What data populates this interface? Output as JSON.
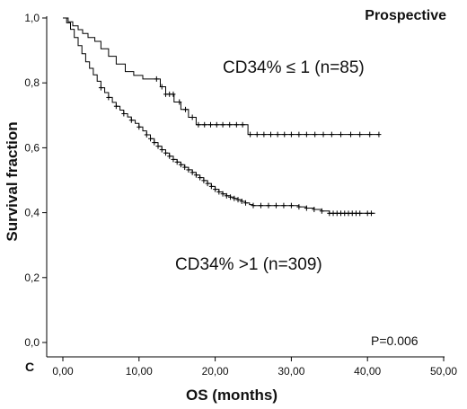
{
  "panel_label": "C",
  "chart_data": {
    "type": "line",
    "title": "Prospective",
    "xlabel": "OS (months)",
    "ylabel": "Survival fraction",
    "xlim": [
      0,
      50
    ],
    "ylim": [
      0,
      1
    ],
    "x_ticks": [
      "0,00",
      "10,00",
      "20,00",
      "30,00",
      "40,00",
      "50,00"
    ],
    "y_ticks": [
      "0,0",
      "0,2",
      "0,4",
      "0,6",
      "0,8",
      "1,0"
    ],
    "grid": false,
    "annotations": [
      "P=0.006"
    ],
    "group_labels": [
      "CD34% ≤ 1 (n=85)",
      "CD34% >1 (n=309)"
    ],
    "series": [
      {
        "name": "CD34% ≤ 1 (n=85)",
        "step": true,
        "x": [
          0,
          0.7,
          1.3,
          2,
          2.6,
          3.3,
          4.2,
          5,
          6,
          7,
          8.2,
          9.3,
          10.5,
          12.8,
          13.5,
          14.6,
          15.5,
          16.5,
          17.5,
          24.3,
          41.5
        ],
        "y": [
          1.0,
          0.988,
          0.976,
          0.964,
          0.952,
          0.94,
          0.928,
          0.905,
          0.882,
          0.858,
          0.835,
          0.823,
          0.812,
          0.788,
          0.765,
          0.741,
          0.718,
          0.694,
          0.671,
          0.641,
          0.641
        ],
        "censor_x": [
          12.3,
          13.0,
          13.5,
          14.0,
          14.5,
          15.3,
          16.1,
          17.0,
          17.8,
          18.6,
          19.4,
          20.2,
          21.0,
          21.9,
          22.8,
          23.6,
          24.6,
          25.5,
          26.4,
          27.3,
          28.2,
          29.1,
          30.0,
          31.0,
          32.0,
          33.1,
          34.2,
          35.3,
          36.5,
          37.8,
          39.0,
          40.3,
          41.5
        ]
      },
      {
        "name": "CD34% >1 (n=309)",
        "step": true,
        "x": [
          0,
          0.5,
          1,
          1.5,
          2,
          2.5,
          3,
          3.5,
          4,
          4.5,
          5,
          5.5,
          6,
          6.5,
          7,
          7.5,
          8,
          8.5,
          9,
          9.5,
          10,
          10.5,
          11,
          11.5,
          12,
          12.5,
          13,
          13.5,
          14,
          14.5,
          15,
          15.5,
          16,
          16.5,
          17,
          17.5,
          18,
          18.5,
          19,
          19.5,
          20,
          20.5,
          21,
          21.5,
          22,
          22.5,
          23,
          23.5,
          24,
          24.5,
          25,
          26,
          27,
          28,
          29,
          30,
          31,
          32,
          33,
          34,
          35,
          41
        ],
        "y": [
          1.0,
          0.985,
          0.965,
          0.94,
          0.915,
          0.89,
          0.865,
          0.845,
          0.825,
          0.805,
          0.785,
          0.77,
          0.755,
          0.74,
          0.728,
          0.716,
          0.705,
          0.695,
          0.685,
          0.675,
          0.664,
          0.652,
          0.64,
          0.628,
          0.616,
          0.605,
          0.594,
          0.584,
          0.574,
          0.564,
          0.556,
          0.548,
          0.54,
          0.532,
          0.524,
          0.516,
          0.508,
          0.499,
          0.49,
          0.481,
          0.472,
          0.464,
          0.458,
          0.452,
          0.448,
          0.444,
          0.44,
          0.435,
          0.43,
          0.425,
          0.422,
          0.422,
          0.422,
          0.422,
          0.422,
          0.422,
          0.418,
          0.414,
          0.41,
          0.405,
          0.398,
          0.398
        ],
        "censor_x": [
          5,
          6,
          7,
          8,
          9,
          10,
          11,
          11.5,
          12,
          12.5,
          13,
          13.5,
          14,
          14.5,
          15,
          15.5,
          16,
          16.5,
          17,
          17.5,
          18,
          18.5,
          19,
          19.5,
          20,
          20.5,
          21,
          21.5,
          22,
          22.5,
          23,
          23.5,
          24,
          25,
          26,
          27,
          28,
          29,
          30,
          31,
          32,
          33,
          34,
          35,
          35.5,
          36,
          36.5,
          37,
          37.5,
          38,
          38.5,
          39,
          40,
          40.5
        ]
      }
    ]
  }
}
